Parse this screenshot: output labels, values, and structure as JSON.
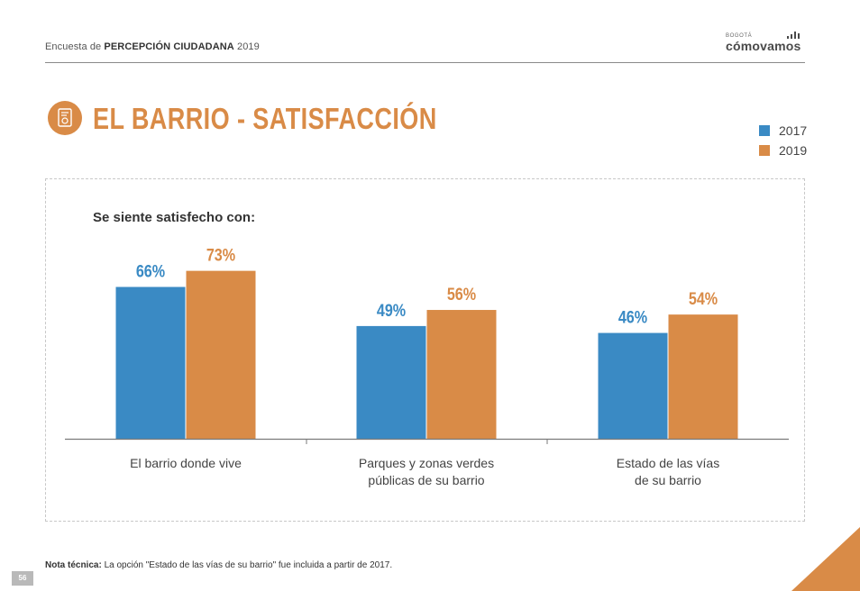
{
  "header": {
    "prefix": "Encuesta de",
    "highlight": "PERCEPCIÓN CIUDADANA",
    "year": "2019"
  },
  "logo": {
    "small": "BOGOTÁ",
    "main": "cómovamos"
  },
  "title": "EL BARRIO - SATISFACCIÓN",
  "colors": {
    "accent": "#d98b47",
    "series_2017": "#3a8ac4",
    "series_2019": "#d98b47",
    "axis": "#7a7a7a",
    "label_2017": "#3a8ac4",
    "label_2019": "#d98b47"
  },
  "legend": [
    {
      "label": "2017",
      "color": "#3a8ac4"
    },
    {
      "label": "2019",
      "color": "#d98b47"
    }
  ],
  "subtitle": "Se siente satisfecho con:",
  "chart_data": {
    "type": "bar",
    "title": "Se siente satisfecho con:",
    "categories": [
      [
        "El barrio donde vive"
      ],
      [
        "Parques y zonas verdes",
        "públicas de su barrio"
      ],
      [
        "Estado de las vías",
        "de su barrio"
      ]
    ],
    "series": [
      {
        "name": "2017",
        "values": [
          66,
          49,
          46
        ],
        "labels": [
          "66%",
          "49%",
          "46%"
        ]
      },
      {
        "name": "2019",
        "values": [
          73,
          56,
          54
        ],
        "labels": [
          "73%",
          "56%",
          "54%"
        ]
      }
    ],
    "ylim": [
      0,
      100
    ],
    "unit": "%",
    "grid": false,
    "legend_position": "top-right"
  },
  "note": {
    "label": "Nota técnica:",
    "text": "La opción \"Estado de las vías de su barrio\" fue incluida a partir de 2017."
  },
  "page_number": "56"
}
